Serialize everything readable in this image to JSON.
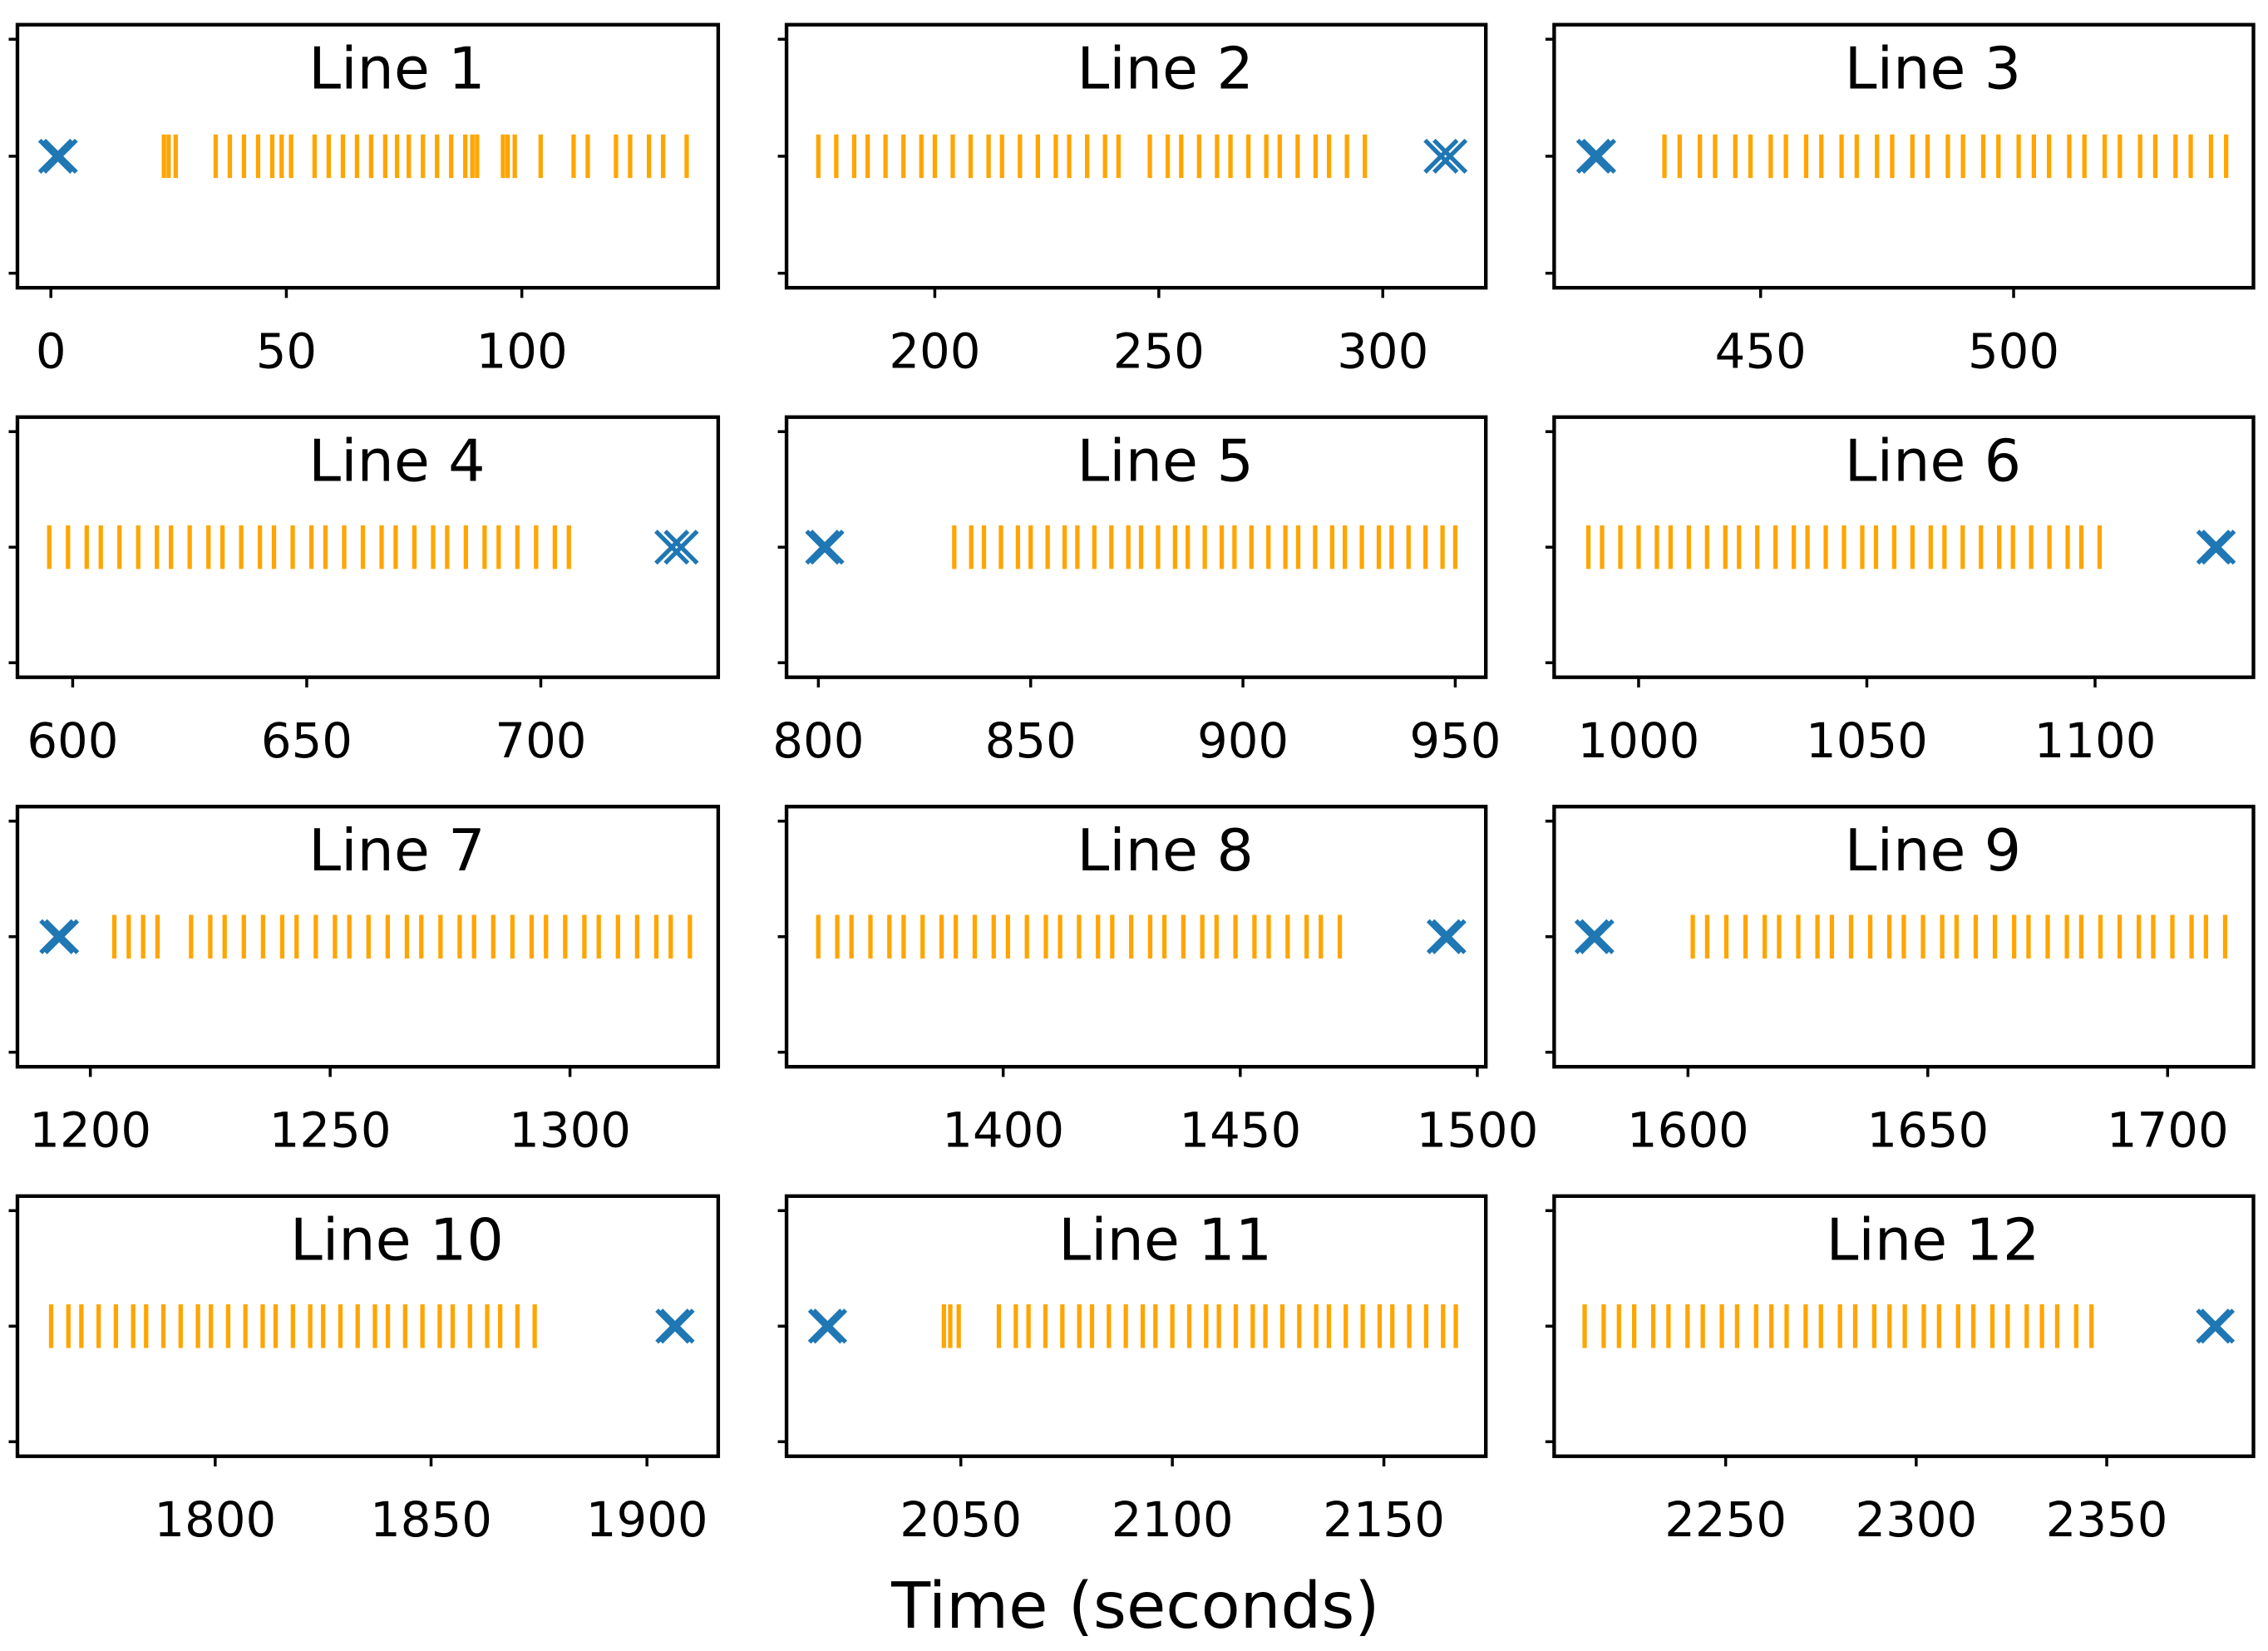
{
  "x_label": "Time (seconds)",
  "chart_data": [
    {
      "type": "eventplot",
      "title": "Line 1",
      "xlim": [
        -7.1,
        141.7
      ],
      "xticks": [
        0,
        50,
        100
      ],
      "events": {
        "color": "#ffa500",
        "values": [
          24,
          25,
          26.5,
          35,
          38,
          41,
          44,
          47,
          49,
          51,
          56,
          59,
          62,
          65,
          68,
          71,
          73.5,
          76,
          79,
          82,
          85,
          88,
          89.5,
          90.5,
          96,
          97,
          98.5,
          104,
          111,
          114,
          120,
          123,
          127,
          130,
          135
        ]
      },
      "markers": {
        "color": "#1f77b4",
        "values": [
          1,
          2
        ]
      }
    },
    {
      "type": "eventplot",
      "title": "Line 2",
      "xlim": [
        166.9,
        323
      ],
      "xticks": [
        200,
        250,
        300
      ],
      "events": {
        "color": "#ffa500",
        "values": [
          174,
          178,
          182,
          185,
          189,
          193,
          197,
          200,
          204,
          208,
          212,
          215,
          219,
          223,
          227,
          230,
          234,
          238,
          241,
          248,
          252,
          255,
          259,
          263,
          266,
          270,
          274,
          277,
          281,
          285,
          288,
          292,
          296
        ]
      },
      "markers": {
        "color": "#1f77b4",
        "values": [
          313,
          315
        ]
      }
    },
    {
      "type": "eventplot",
      "title": "Line 3",
      "xlim": [
        409.2,
        547.4
      ],
      "xticks": [
        450,
        500
      ],
      "events": {
        "color": "#ffa500",
        "values": [
          431,
          434,
          438,
          441,
          445,
          448,
          452,
          455,
          459,
          462,
          466,
          469,
          473,
          476,
          480,
          483,
          487,
          490,
          494,
          497,
          501,
          504,
          507,
          511,
          514,
          518,
          521,
          525,
          528,
          532,
          535,
          539,
          542
        ]
      },
      "markers": {
        "color": "#1f77b4",
        "values": [
          417,
          418
        ]
      }
    },
    {
      "type": "eventplot",
      "title": "Line 4",
      "xlim": [
        588.2,
        737.9
      ],
      "xticks": [
        600,
        650,
        700
      ],
      "events": {
        "color": "#ffa500",
        "values": [
          595,
          599,
          603,
          606,
          610,
          614,
          618,
          621,
          625,
          629,
          632,
          636,
          640,
          643,
          647,
          651,
          654,
          658,
          662,
          666,
          669,
          673,
          677,
          680,
          684,
          688,
          691,
          695,
          699,
          703,
          706
        ]
      },
      "markers": {
        "color": "#1f77b4",
        "values": [
          728,
          730
        ]
      }
    },
    {
      "type": "eventplot",
      "title": "Line 5",
      "xlim": [
        792.5,
        957.2
      ],
      "xticks": [
        800,
        850,
        900,
        950
      ],
      "events": {
        "color": "#ffa500",
        "values": [
          832,
          836,
          839,
          843,
          847,
          850,
          854,
          858,
          861,
          865,
          869,
          873,
          876,
          880,
          884,
          887,
          891,
          895,
          898,
          902,
          906,
          910,
          913,
          917,
          921,
          924,
          928,
          932,
          935,
          939,
          943,
          947,
          950
        ]
      },
      "markers": {
        "color": "#1f77b4",
        "values": [
          801,
          802
        ]
      }
    },
    {
      "type": "eventplot",
      "title": "Line 6",
      "xlim": [
        981.5,
        1134.7
      ],
      "xticks": [
        1000,
        1050,
        1100
      ],
      "events": {
        "color": "#ffa500",
        "values": [
          989,
          992,
          996,
          1000,
          1004,
          1007,
          1011,
          1015,
          1019,
          1022,
          1026,
          1030,
          1034,
          1037,
          1041,
          1045,
          1049,
          1052,
          1056,
          1060,
          1064,
          1067,
          1071,
          1075,
          1079,
          1082,
          1086,
          1090,
          1094,
          1097,
          1101
        ]
      },
      "markers": {
        "color": "#1f77b4",
        "values": [
          1126,
          1127
        ]
      }
    },
    {
      "type": "eventplot",
      "title": "Line 7",
      "xlim": [
        1184.8,
        1330.9
      ],
      "xticks": [
        1200,
        1250,
        1300
      ],
      "events": {
        "color": "#ffa500",
        "values": [
          1205,
          1208,
          1211,
          1214,
          1221,
          1225,
          1228,
          1232,
          1236,
          1240,
          1243,
          1247,
          1251,
          1254,
          1258,
          1262,
          1266,
          1269,
          1273,
          1277,
          1280,
          1284,
          1288,
          1292,
          1295,
          1299,
          1303,
          1306,
          1310,
          1314,
          1318,
          1321,
          1325
        ]
      },
      "markers": {
        "color": "#1f77b4",
        "values": [
          1193,
          1194
        ]
      }
    },
    {
      "type": "eventplot",
      "title": "Line 8",
      "xlim": [
        1354.3,
        1501.8
      ],
      "xticks": [
        1400,
        1450,
        1500
      ],
      "events": {
        "color": "#ffa500",
        "values": [
          1361,
          1365,
          1368,
          1372,
          1376,
          1379,
          1383,
          1387,
          1390,
          1394,
          1398,
          1401,
          1405,
          1409,
          1412,
          1416,
          1420,
          1423,
          1427,
          1431,
          1434,
          1438,
          1442,
          1445,
          1449,
          1453,
          1456,
          1460,
          1464,
          1467,
          1471
        ]
      },
      "markers": {
        "color": "#1f77b4",
        "values": [
          1493,
          1494
        ]
      }
    },
    {
      "type": "eventplot",
      "title": "Line 9",
      "xlim": [
        1572.1,
        1717.9
      ],
      "xticks": [
        1600,
        1650,
        1700
      ],
      "events": {
        "color": "#ffa500",
        "values": [
          1601,
          1604,
          1608,
          1612,
          1616,
          1619,
          1623,
          1627,
          1630,
          1634,
          1638,
          1642,
          1645,
          1649,
          1653,
          1656,
          1660,
          1664,
          1668,
          1671,
          1675,
          1679,
          1682,
          1686,
          1690,
          1694,
          1697,
          1701,
          1705,
          1708,
          1712
        ]
      },
      "markers": {
        "color": "#1f77b4",
        "values": [
          1580,
          1581
        ]
      }
    },
    {
      "type": "eventplot",
      "title": "Line 10",
      "xlim": [
        1754.2,
        1916.5
      ],
      "xticks": [
        1800,
        1850,
        1900
      ],
      "events": {
        "color": "#ffa500",
        "values": [
          1762,
          1766,
          1769,
          1773,
          1777,
          1781,
          1784,
          1788,
          1792,
          1796,
          1799,
          1803,
          1807,
          1811,
          1814,
          1818,
          1822,
          1825,
          1829,
          1833,
          1837,
          1840,
          1844,
          1848,
          1852,
          1855,
          1859,
          1863,
          1866,
          1870,
          1874
        ]
      },
      "markers": {
        "color": "#1f77b4",
        "values": [
          1906,
          1907
        ]
      }
    },
    {
      "type": "eventplot",
      "title": "Line 11",
      "xlim": [
        2008.8,
        2174.1
      ],
      "xticks": [
        2050,
        2100,
        2150
      ],
      "events": {
        "color": "#ffa500",
        "values": [
          2046,
          2047.5,
          2049.5,
          2059,
          2063,
          2066,
          2070,
          2074,
          2078,
          2081,
          2085,
          2089,
          2093,
          2096,
          2100,
          2104,
          2108,
          2111,
          2115,
          2119,
          2122,
          2126,
          2130,
          2134,
          2137,
          2141,
          2145,
          2149,
          2152,
          2156,
          2160,
          2164,
          2167
        ]
      },
      "markers": {
        "color": "#1f77b4",
        "values": [
          2018,
          2019
        ]
      }
    },
    {
      "type": "eventplot",
      "title": "Line 12",
      "xlim": [
        2205,
        2388.5
      ],
      "xticks": [
        2250,
        2300,
        2350
      ],
      "events": {
        "color": "#ffa500",
        "values": [
          2213,
          2218,
          2222,
          2226,
          2231,
          2235,
          2240,
          2244,
          2249,
          2253,
          2258,
          2262,
          2266,
          2271,
          2275,
          2280,
          2284,
          2289,
          2293,
          2297,
          2302,
          2306,
          2311,
          2315,
          2320,
          2324,
          2329,
          2333,
          2337,
          2342,
          2346
        ]
      },
      "markers": {
        "color": "#1f77b4",
        "values": [
          2378,
          2379
        ]
      }
    }
  ]
}
